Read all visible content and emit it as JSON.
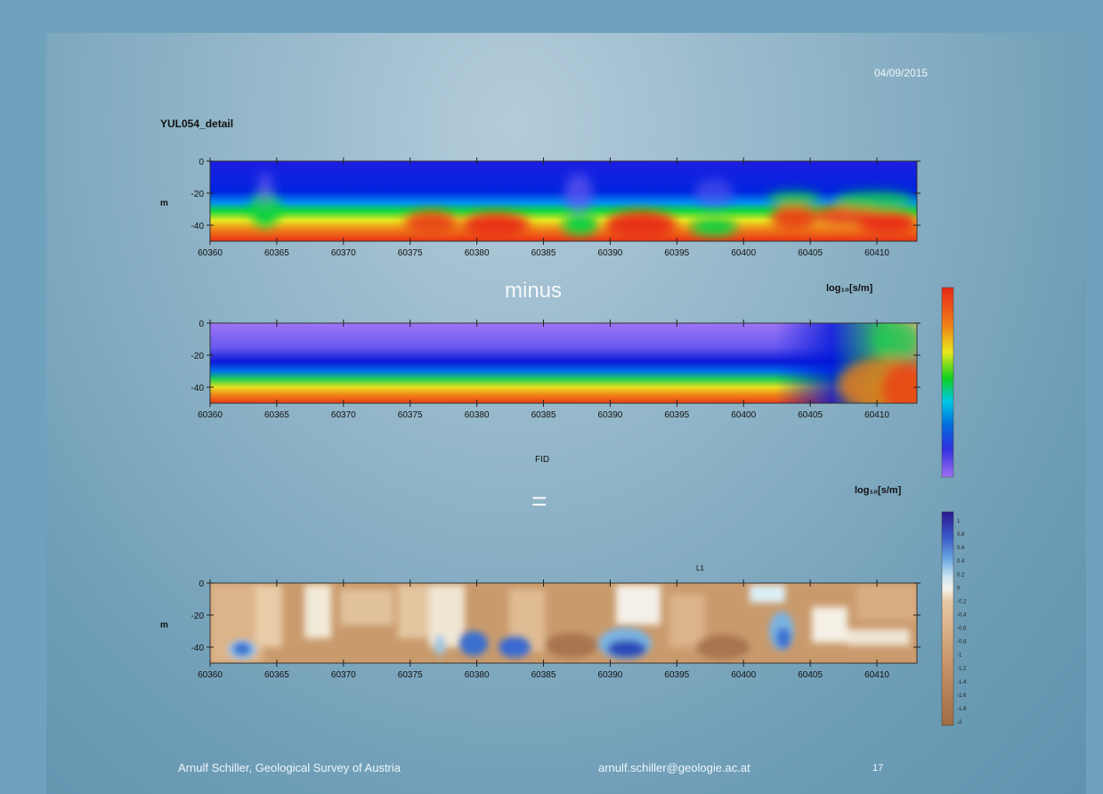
{
  "slide": {
    "date": "04/09/2015",
    "title": "YUL054_detail",
    "minus_label": "minus",
    "equals_label": "=",
    "fid_label": "FID",
    "line_label": "L1",
    "footer": {
      "author": "Arnulf Schiller, Geological Survey of Austria",
      "email": "arnulf.schiller@geologie.ac.at",
      "page": "17"
    }
  },
  "chart_data": [
    {
      "type": "heatmap",
      "title": "YUL054_detail",
      "xlabel": "",
      "ylabel": "m",
      "xlim": [
        60360,
        60413
      ],
      "ylim": [
        -50,
        0
      ],
      "x_ticks": [
        60360,
        60365,
        60370,
        60375,
        60380,
        60385,
        60390,
        60395,
        60400,
        60405,
        60410
      ],
      "y_ticks": [
        0,
        -20,
        -40
      ],
      "colorbar_label": "log₁₀[s/m]",
      "colorscale": [
        "#9b6cf0",
        "#1c1ee0",
        "#0038d8",
        "#00c8f0",
        "#10d020",
        "#e8e820",
        "#f08018",
        "#e83018"
      ],
      "notes": "Upper conductive layer (blue) to ~-30 m, conductive base (red/orange) below ~-40 m; bulges at 60365, 60380, 60383, 60391, 60403-60412"
    },
    {
      "type": "heatmap",
      "xlabel": "FID",
      "ylabel": "",
      "xlim": [
        60360,
        60413
      ],
      "ylim": [
        -50,
        0
      ],
      "x_ticks": [
        60360,
        60365,
        60370,
        60375,
        60380,
        60385,
        60390,
        60395,
        60400,
        60405,
        60410
      ],
      "y_ticks": [
        0,
        -20,
        -40
      ],
      "colorbar_label": "log₁₀[s/m]"
    },
    {
      "type": "heatmap",
      "title": "L1",
      "xlabel": "",
      "ylabel": "m",
      "xlim": [
        60360,
        60413
      ],
      "ylim": [
        -50,
        0
      ],
      "x_ticks": [
        60360,
        60365,
        60370,
        60375,
        60380,
        60385,
        60390,
        60395,
        60400,
        60405,
        60410
      ],
      "y_ticks": [
        0,
        -20,
        -40
      ],
      "colorbar_ticks": [
        "1",
        "0.8",
        "0.6",
        "0.4",
        "0.2",
        "0",
        "-0.2",
        "-0.4",
        "-0.6",
        "-0.8",
        "-1",
        "-1.2",
        "-1.4",
        "-1.6",
        "-1.8",
        "-2"
      ],
      "colorscale": [
        "#3a2a98",
        "#3a70d0",
        "#9ccbe6",
        "#f2f2ee",
        "#e4c29e",
        "#c9996c",
        "#a8754a"
      ],
      "positive_anomalies_at": [
        60362,
        60379,
        60382,
        60392,
        60403
      ]
    }
  ]
}
